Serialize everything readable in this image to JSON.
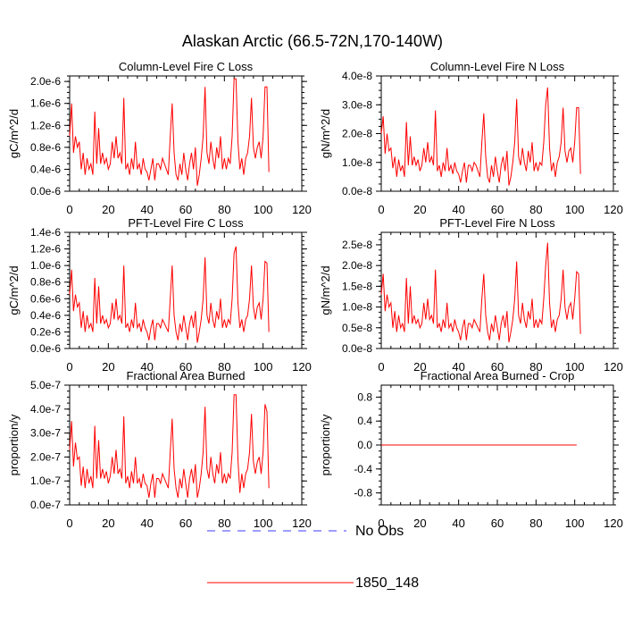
{
  "title": "Alaskan Arctic (66.5-72N,170-140W)",
  "colors": {
    "model_line": "#ff0000",
    "obs_line": "#3b3bff",
    "axis": "#000000"
  },
  "legend": {
    "placement": "bottom-center",
    "items": [
      {
        "label": "No Obs",
        "style": "dashed",
        "color": "#3b3bff"
      },
      {
        "label": "1850_148",
        "style": "solid",
        "color": "#ff0000"
      }
    ]
  },
  "chart_data": [
    {
      "type": "line",
      "title": "Column-Level Fire C Loss",
      "ylabel": "gC/m^2/d",
      "xlim": [
        0,
        120
      ],
      "xticks": [
        0,
        20,
        40,
        60,
        80,
        100,
        120
      ],
      "xtick_labels": [
        "0",
        "20",
        "40",
        "60",
        "80",
        "100",
        "120"
      ],
      "ylim": [
        0,
        2.1e-06
      ],
      "yticks": [
        0,
        4e-07,
        8e-07,
        1.2e-06,
        1.6e-06,
        2e-06
      ],
      "ytick_labels": [
        "0.0e-6",
        "0.4e-6",
        "0.8e-6",
        "1.2e-6",
        "1.6e-6",
        "2.0e-6"
      ],
      "series": [
        {
          "name": "1850_148",
          "x_start": 0,
          "x_step": 1,
          "values": [
            1e-06,
            1.6e-06,
            7e-07,
            1e-06,
            8e-07,
            9e-07,
            4e-07,
            7e-07,
            3e-07,
            6e-07,
            4e-07,
            5e-07,
            3e-07,
            1.45e-06,
            5e-07,
            1.15e-06,
            5e-07,
            7e-07,
            5e-07,
            6e-07,
            4e-07,
            5e-07,
            9e-07,
            6e-07,
            1e-06,
            6e-07,
            7e-07,
            5e-07,
            1.7e-06,
            4e-07,
            5e-07,
            3e-07,
            6e-07,
            4e-07,
            9e-07,
            4e-07,
            5e-07,
            3e-07,
            6e-07,
            4e-07,
            3.5e-07,
            2e-07,
            4e-07,
            6e-07,
            2e-07,
            5e-07,
            5e-07,
            4e-07,
            6e-07,
            5e-07,
            4e-07,
            3e-07,
            1e-06,
            1.6e-06,
            7e-07,
            3e-07,
            2e-07,
            5e-07,
            3e-07,
            7e-07,
            4e-07,
            2e-07,
            5e-07,
            7e-07,
            4e-07,
            8e-07,
            1e-07,
            3e-07,
            6e-07,
            1e-06,
            1.9e-06,
            7e-07,
            5e-07,
            9e-07,
            6e-07,
            4e-07,
            8e-07,
            6e-07,
            1e-06,
            4e-07,
            6e-07,
            4e-07,
            6e-07,
            5e-07,
            1e-06,
            2.05e-06,
            2.05e-06,
            9e-07,
            4e-07,
            6e-07,
            3e-07,
            6e-07,
            7e-07,
            1e-06,
            1.7e-06,
            8e-07,
            6e-07,
            8e-07,
            9e-07,
            6e-07,
            1e-06,
            1.9e-06,
            1.9e-06,
            3.5e-07
          ]
        }
      ]
    },
    {
      "type": "line",
      "title": "Column-Level Fire N Loss",
      "ylabel": "gN/m^2/d",
      "xlim": [
        0,
        120
      ],
      "xticks": [
        0,
        20,
        40,
        60,
        80,
        100,
        120
      ],
      "xtick_labels": [
        "0",
        "20",
        "40",
        "60",
        "80",
        "100",
        "120"
      ],
      "ylim": [
        0,
        4e-08
      ],
      "yticks": [
        0,
        1e-08,
        2e-08,
        3e-08,
        4e-08
      ],
      "ytick_labels": [
        "0.0e-8",
        "1.0e-8",
        "2.0e-8",
        "3.0e-8",
        "4.0e-8"
      ],
      "series": [
        {
          "name": "1850_148",
          "x_start": 0,
          "x_step": 1,
          "values": [
            2e-08,
            2.6e-08,
            1.3e-08,
            2e-08,
            1.4e-08,
            1.5e-08,
            8e-09,
            1.2e-08,
            5e-09,
            1.1e-08,
            7e-09,
            9e-09,
            5e-09,
            2.4e-08,
            9e-09,
            1.9e-08,
            9e-09,
            1.2e-08,
            9e-09,
            1.1e-08,
            7e-09,
            9e-09,
            1.5e-08,
            1e-08,
            1.7e-08,
            1e-08,
            1.2e-08,
            9e-09,
            2.8e-08,
            7e-09,
            9e-09,
            5e-09,
            1e-08,
            7e-09,
            1.5e-08,
            7e-09,
            9e-09,
            6e-09,
            1e-08,
            7e-09,
            6e-09,
            3e-09,
            7e-09,
            1e-08,
            3e-09,
            9e-09,
            9e-09,
            7e-09,
            1e-08,
            9e-09,
            7e-09,
            5e-09,
            1.7e-08,
            2.7e-08,
            1.2e-08,
            5e-09,
            3e-09,
            9e-09,
            5e-09,
            1.2e-08,
            7e-09,
            3e-09,
            9e-09,
            1.2e-08,
            7e-09,
            1.4e-08,
            2e-09,
            5e-09,
            1e-08,
            1.7e-08,
            3.2e-08,
            1.2e-08,
            9e-09,
            1.5e-08,
            1e-08,
            7e-09,
            1.4e-08,
            1e-08,
            1.7e-08,
            7e-09,
            1e-08,
            7e-09,
            1e-08,
            9e-09,
            1.7e-08,
            3e-08,
            3.6e-08,
            1.5e-08,
            7e-09,
            1e-08,
            5e-09,
            1e-08,
            1.2e-08,
            1.7e-08,
            2.9e-08,
            1.4e-08,
            1e-08,
            1.4e-08,
            1.5e-08,
            1e-08,
            1.7e-08,
            2.9e-08,
            2.9e-08,
            6e-09
          ]
        }
      ]
    },
    {
      "type": "line",
      "title": "PFT-Level Fire C Loss",
      "ylabel": "gC/m^2/d",
      "xlim": [
        0,
        120
      ],
      "xticks": [
        0,
        20,
        40,
        60,
        80,
        100,
        120
      ],
      "xtick_labels": [
        "0",
        "20",
        "40",
        "60",
        "80",
        "100",
        "120"
      ],
      "ylim": [
        0,
        1.4e-06
      ],
      "yticks": [
        0,
        2e-07,
        4e-07,
        6e-07,
        8e-07,
        1e-06,
        1.2e-06,
        1.4e-06
      ],
      "ytick_labels": [
        "0.0e-6",
        "0.2e-6",
        "0.4e-6",
        "0.6e-6",
        "0.8e-6",
        "1.0e-6",
        "1.2e-6",
        "1.4e-6"
      ],
      "series": [
        {
          "name": "1850_148",
          "x_start": 0,
          "x_step": 1,
          "values": [
            6.5e-07,
            9.5e-07,
            4.5e-07,
            6.5e-07,
            5e-07,
            5.5e-07,
            2.5e-07,
            4.5e-07,
            2e-07,
            4e-07,
            2.5e-07,
            3e-07,
            2e-07,
            8.5e-07,
            3e-07,
            7.5e-07,
            3e-07,
            4e-07,
            3e-07,
            3.5e-07,
            2.5e-07,
            3e-07,
            5.5e-07,
            3.5e-07,
            6e-07,
            3.5e-07,
            4e-07,
            3e-07,
            1e-06,
            2.5e-07,
            3e-07,
            2e-07,
            3.5e-07,
            2.5e-07,
            5.5e-07,
            2.5e-07,
            3e-07,
            2e-07,
            3.5e-07,
            2.5e-07,
            2e-07,
            1e-07,
            2.5e-07,
            3.5e-07,
            1e-07,
            3e-07,
            3e-07,
            2.5e-07,
            3.5e-07,
            3e-07,
            2.5e-07,
            2e-07,
            6e-07,
            1e-06,
            4e-07,
            2e-07,
            1e-07,
            3e-07,
            2e-07,
            4e-07,
            2.5e-07,
            1e-07,
            3e-07,
            4e-07,
            2.5e-07,
            4.5e-07,
            7e-08,
            2e-07,
            3.5e-07,
            6e-07,
            1.1e-06,
            4e-07,
            3e-07,
            5.5e-07,
            3.5e-07,
            2.5e-07,
            4.5e-07,
            3.5e-07,
            6e-07,
            2.5e-07,
            3.5e-07,
            2.5e-07,
            3.5e-07,
            3e-07,
            6e-07,
            1.15e-06,
            1.23e-06,
            5.5e-07,
            2.5e-07,
            3.5e-07,
            2e-07,
            3.5e-07,
            4e-07,
            6e-07,
            1e-06,
            5e-07,
            3.5e-07,
            5e-07,
            5.5e-07,
            3.5e-07,
            6e-07,
            1.05e-06,
            1.03e-06,
            2e-07
          ]
        }
      ]
    },
    {
      "type": "line",
      "title": "PFT-Level Fire N Loss",
      "ylabel": "gN/m^2/d",
      "xlim": [
        0,
        120
      ],
      "xticks": [
        0,
        20,
        40,
        60,
        80,
        100,
        120
      ],
      "xtick_labels": [
        "0",
        "20",
        "40",
        "60",
        "80",
        "100",
        "120"
      ],
      "ylim": [
        0,
        2.8e-08
      ],
      "yticks": [
        0,
        5e-09,
        1e-08,
        1.5e-08,
        2e-08,
        2.5e-08
      ],
      "ytick_labels": [
        "0.0e-8",
        "0.5e-8",
        "1.0e-8",
        "1.5e-8",
        "2.0e-8",
        "2.5e-8"
      ],
      "series": [
        {
          "name": "1850_148",
          "x_start": 0,
          "x_step": 1,
          "values": [
            1.3e-08,
            1.8e-08,
            9e-09,
            1.3e-08,
            1e-08,
            1.1e-08,
            5e-09,
            9e-09,
            4e-09,
            8e-09,
            5e-09,
            6e-09,
            4e-09,
            1.7e-08,
            6e-09,
            1.5e-08,
            6e-09,
            8e-09,
            6e-09,
            7e-09,
            5e-09,
            6e-09,
            1.1e-08,
            7e-09,
            1.2e-08,
            7e-09,
            8e-09,
            6e-09,
            1.9e-08,
            5e-09,
            6e-09,
            4e-09,
            7e-09,
            5e-09,
            1.1e-08,
            5e-09,
            6e-09,
            4e-09,
            7e-09,
            5e-09,
            4e-09,
            2e-09,
            5e-09,
            7e-09,
            2e-09,
            6e-09,
            6e-09,
            5e-09,
            7e-09,
            6e-09,
            5e-09,
            4e-09,
            1.2e-08,
            1.8e-08,
            8e-09,
            4e-09,
            2e-09,
            6e-09,
            4e-09,
            8e-09,
            5e-09,
            2e-09,
            6e-09,
            8e-09,
            5e-09,
            9e-09,
            1.5e-09,
            4e-09,
            7e-09,
            1.2e-08,
            2.1e-08,
            8e-09,
            6e-09,
            1.1e-08,
            7e-09,
            5e-09,
            9e-09,
            7e-09,
            1.2e-08,
            5e-09,
            7e-09,
            5e-09,
            7e-09,
            6e-09,
            1.2e-08,
            2e-08,
            2.55e-08,
            1.1e-08,
            5e-09,
            7e-09,
            4e-09,
            7e-09,
            8e-09,
            1.2e-08,
            1.9e-08,
            1e-08,
            7e-09,
            1e-08,
            1.1e-08,
            7e-09,
            1.2e-08,
            1.85e-08,
            1.8e-08,
            3.5e-09
          ]
        }
      ]
    },
    {
      "type": "line",
      "title": "Fractional Area Burned",
      "ylabel": "proportion/y",
      "xlim": [
        0,
        120
      ],
      "xticks": [
        0,
        20,
        40,
        60,
        80,
        100,
        120
      ],
      "xtick_labels": [
        "0",
        "20",
        "40",
        "60",
        "80",
        "100",
        "120"
      ],
      "ylim": [
        0,
        5e-07
      ],
      "yticks": [
        0,
        1e-07,
        2e-07,
        3e-07,
        4e-07,
        5e-07
      ],
      "ytick_labels": [
        "0.0e-7",
        "1.0e-7",
        "2.0e-7",
        "3.0e-7",
        "4.0e-7",
        "5.0e-7"
      ],
      "series": [
        {
          "name": "1850_148",
          "x_start": 0,
          "x_step": 1,
          "values": [
            2.3e-07,
            3.5e-07,
            1.6e-07,
            2.6e-07,
            1.9e-07,
            2e-07,
            8e-08,
            1.6e-07,
            7e-08,
            1.5e-07,
            9e-08,
            1.2e-07,
            7e-08,
            3.3e-07,
            1.1e-07,
            2.7e-07,
            1.1e-07,
            1.5e-07,
            1.1e-07,
            1.4e-07,
            9e-08,
            1.2e-07,
            2e-07,
            1.3e-07,
            2.3e-07,
            1.3e-07,
            1.5e-07,
            1.1e-07,
            3.7e-07,
            9e-08,
            1.2e-07,
            7e-08,
            1.4e-07,
            9e-08,
            2e-07,
            9e-08,
            1.1e-07,
            7e-08,
            1.3e-07,
            9e-08,
            8e-08,
            3e-08,
            9e-08,
            1.3e-07,
            3e-08,
            1.1e-07,
            1.1e-07,
            9e-08,
            1.3e-07,
            1.1e-07,
            9e-08,
            7e-08,
            2.2e-07,
            3.6e-07,
            1.5e-07,
            7e-08,
            3e-08,
            1.1e-07,
            7e-08,
            1.5e-07,
            9e-08,
            3e-08,
            1.1e-07,
            1.5e-07,
            9e-08,
            1.7e-07,
            3e-08,
            7e-08,
            1.3e-07,
            2.2e-07,
            4.1e-07,
            1.5e-07,
            1.1e-07,
            2e-07,
            1.3e-07,
            9e-08,
            1.7e-07,
            1.3e-07,
            2.2e-07,
            9e-08,
            1.3e-07,
            9e-08,
            1.3e-07,
            1.1e-07,
            2.2e-07,
            4.6e-07,
            4.6e-07,
            1.9e-07,
            5e-08,
            1.3e-07,
            7e-08,
            1.3e-07,
            1.5e-07,
            2.2e-07,
            3.8e-07,
            1.8e-07,
            1.3e-07,
            1.8e-07,
            2e-07,
            1.3e-07,
            2.2e-07,
            4.2e-07,
            3.9e-07,
            7e-08
          ]
        }
      ]
    },
    {
      "type": "line",
      "title": "Fractional Area Burned - Crop",
      "ylabel": "proportion/y",
      "xlim": [
        0,
        120
      ],
      "xticks": [
        0,
        20,
        40,
        60,
        80,
        100,
        120
      ],
      "xtick_labels": [
        "0",
        "20",
        "40",
        "60",
        "80",
        "100",
        "120"
      ],
      "ylim": [
        -1,
        1
      ],
      "yticks": [
        -0.8,
        -0.4,
        0,
        0.4,
        0.8
      ],
      "ytick_labels": [
        "-0.8",
        "-0.4",
        "0.0",
        "0.4",
        "0.8"
      ],
      "series": [
        {
          "name": "1850_148",
          "x_start": 0,
          "x_step": 101,
          "values": [
            0,
            0
          ]
        }
      ]
    }
  ]
}
